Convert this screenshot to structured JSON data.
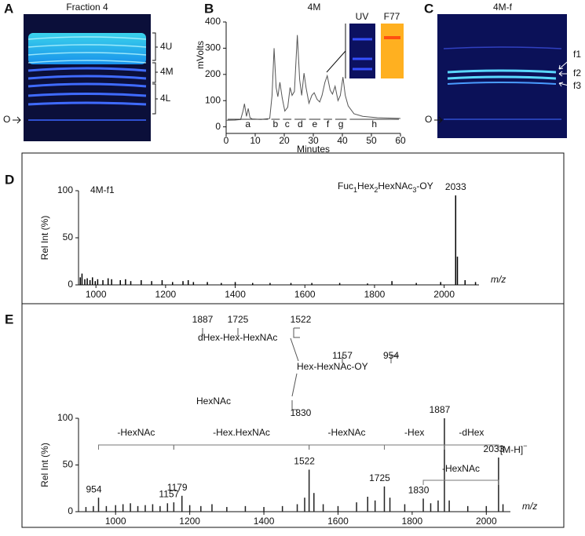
{
  "gels": [
    {
      "panel": "A",
      "title": "Fraction 4",
      "bands": [
        "4U",
        "4M",
        "4L"
      ],
      "origin": "O"
    },
    {
      "panel": "C",
      "title": "4M-f",
      "bands": [
        "f1",
        "f2",
        "f3"
      ],
      "origin": "O"
    }
  ],
  "chart_data": [
    {
      "type": "line",
      "panel": "B",
      "title": "4M",
      "ylabel": "mVolts",
      "xlabel": "Minutes",
      "color": "#555555",
      "x": [
        0,
        3,
        5,
        5.8,
        6.3,
        7,
        7.6,
        8.2,
        9,
        12,
        15,
        15.8,
        16.5,
        17.2,
        17.8,
        18.5,
        19.3,
        20.2,
        21.2,
        22,
        22.7,
        23.5,
        24.5,
        25.3,
        26,
        26.8,
        27.5,
        28.5,
        29.5,
        30.3,
        31.3,
        32.2,
        33,
        34,
        34.8,
        35.8,
        36.6,
        37.5,
        38.5,
        39.3,
        40.2,
        41,
        42,
        44,
        47,
        52,
        60
      ],
      "values": [
        25,
        26,
        28,
        60,
        88,
        40,
        70,
        35,
        30,
        28,
        32,
        120,
        300,
        150,
        115,
        170,
        110,
        60,
        75,
        150,
        120,
        135,
        350,
        180,
        120,
        205,
        150,
        90,
        120,
        130,
        105,
        95,
        120,
        170,
        195,
        140,
        125,
        155,
        100,
        120,
        190,
        120,
        80,
        50,
        40,
        35,
        32
      ],
      "xlim": [
        0,
        60
      ],
      "ylim": [
        -25,
        400
      ],
      "xticks": [
        0,
        10,
        20,
        30,
        40,
        50,
        60
      ],
      "yticks": [
        0,
        100,
        200,
        300,
        400
      ],
      "fractions": [
        {
          "label": "a",
          "range": [
            0,
            15
          ]
        },
        {
          "label": "b",
          "range": [
            15,
            19
          ]
        },
        {
          "label": "c",
          "range": [
            19,
            23
          ]
        },
        {
          "label": "d",
          "range": [
            23,
            28
          ]
        },
        {
          "label": "e",
          "range": [
            28,
            33
          ]
        },
        {
          "label": "f",
          "range": [
            33,
            37
          ]
        },
        {
          "label": "g",
          "range": [
            37,
            42
          ]
        },
        {
          "label": "h",
          "range": [
            42,
            60
          ]
        }
      ],
      "insets": [
        "UV",
        "F77"
      ]
    },
    {
      "type": "spectrum",
      "panel": "D",
      "sample": "4M-f1",
      "ylabel": "Rel Int (%)",
      "xlabel": "m/z",
      "color": "#000000",
      "annotation_parts": [
        {
          "text": "Fuc"
        },
        {
          "text": "1",
          "sub": true
        },
        {
          "text": "Hex"
        },
        {
          "text": "2",
          "sub": true
        },
        {
          "text": "HexNAc"
        },
        {
          "text": "3",
          "sub": true
        },
        {
          "text": "-OY"
        }
      ],
      "x": [
        955,
        960,
        968,
        975,
        983,
        990,
        998,
        1005,
        1020,
        1035,
        1045,
        1070,
        1085,
        1100,
        1130,
        1160,
        1190,
        1220,
        1250,
        1265,
        1280,
        1320,
        1360,
        1400,
        1450,
        1500,
        1560,
        1620,
        1700,
        1780,
        1850,
        1920,
        1990,
        2033,
        2038,
        2060,
        2090
      ],
      "values": [
        8,
        12,
        6,
        7,
        5,
        8,
        4,
        6,
        5,
        7,
        6,
        5,
        6,
        4,
        5,
        4,
        5,
        3,
        4,
        5,
        3,
        3,
        2,
        3,
        2,
        2,
        2,
        2,
        2,
        1.5,
        4,
        2,
        3,
        95,
        30,
        5,
        3
      ],
      "peak_labels": [
        2033
      ],
      "xlim": [
        950,
        2100
      ],
      "ylim": [
        0,
        100
      ],
      "xticks": [
        1000,
        1200,
        1400,
        1600,
        1800,
        2000
      ],
      "yticks": [
        0,
        50,
        100
      ]
    },
    {
      "type": "spectrum",
      "panel": "E",
      "ylabel": "Rel Int (%)",
      "xlabel": "m/z",
      "color": "#222222",
      "structure": {
        "chain": "dHex-Hex-HexNAc",
        "core": "Hex-HexNAc-OY",
        "branch": "HexNAc",
        "fragments": [
          "1887",
          "1725",
          "1522",
          "1157",
          "954",
          "1830"
        ]
      },
      "x": [
        920,
        940,
        954,
        975,
        1000,
        1020,
        1040,
        1060,
        1080,
        1100,
        1120,
        1140,
        1157,
        1179,
        1200,
        1230,
        1260,
        1300,
        1350,
        1400,
        1450,
        1490,
        1510,
        1522,
        1535,
        1560,
        1600,
        1650,
        1680,
        1700,
        1725,
        1740,
        1780,
        1830,
        1850,
        1870,
        1887,
        1900,
        1950,
        2000,
        2033,
        2045
      ],
      "values": [
        5,
        6,
        15,
        6,
        7,
        8,
        9,
        6,
        7,
        8,
        6,
        9,
        10,
        17,
        7,
        6,
        8,
        5,
        6,
        5,
        6,
        8,
        15,
        45,
        20,
        8,
        6,
        10,
        16,
        12,
        27,
        15,
        8,
        14,
        9,
        12,
        100,
        12,
        6,
        6,
        58,
        8
      ],
      "peak_labels": [
        954,
        1157,
        1179,
        1522,
        1725,
        1830,
        1887,
        2033
      ],
      "losses": [
        {
          "label": "-HexNAc",
          "range": [
            954,
            1157
          ]
        },
        {
          "label": "-Hex.HexNAc",
          "range": [
            1157,
            1522
          ]
        },
        {
          "label": "-HexNAc",
          "range": [
            1522,
            1725
          ]
        },
        {
          "label": "-Hex",
          "range": [
            1725,
            1887
          ]
        },
        {
          "label": "-dHex",
          "range": [
            1887,
            2033
          ]
        },
        {
          "label": "-HexNAc",
          "range": [
            1830,
            2033
          ]
        }
      ],
      "ion_parts": [
        {
          "text": "[M-H]"
        },
        {
          "text": "−",
          "sup": true
        }
      ],
      "xlim": [
        900,
        2065
      ],
      "ylim": [
        0,
        100
      ],
      "xticks": [
        1000,
        1200,
        1400,
        1600,
        1800,
        2000
      ],
      "yticks": [
        0,
        50,
        100
      ]
    }
  ]
}
